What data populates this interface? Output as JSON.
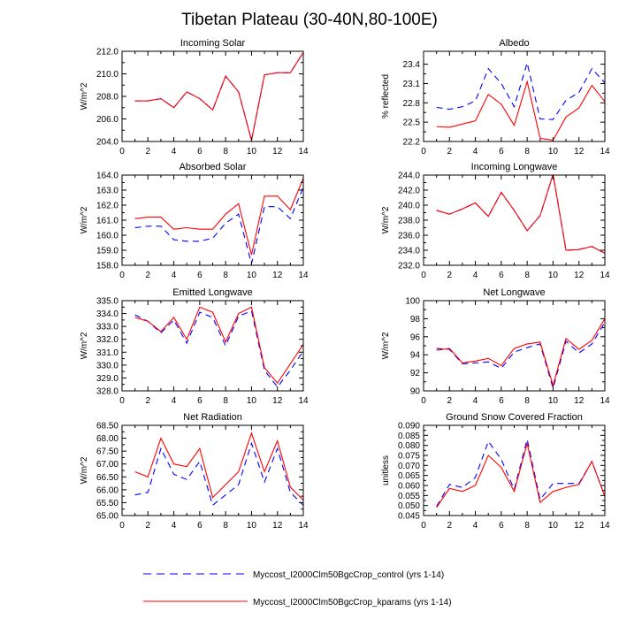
{
  "title": "Tibetan Plateau (30-40N,80-100E)",
  "colors": {
    "control": "#0000ff",
    "kparams": "#ff0000",
    "axis": "#000000"
  },
  "legend": [
    {
      "series": "control",
      "label": "Myccost_I2000Clm50BgcCrop_control (yrs 1-14)",
      "style": "dashed"
    },
    {
      "series": "kparams",
      "label": "Myccost_I2000Clm50BgcCrop_kparams (yrs 1-14)",
      "style": "solid"
    }
  ],
  "chart_data": [
    {
      "type": "line",
      "title": "Incoming Solar",
      "ylabel": "W/m^2",
      "xlim": [
        0,
        14
      ],
      "ylim": [
        204.0,
        212.0
      ],
      "xticks": [
        0,
        2,
        4,
        6,
        8,
        10,
        12,
        14
      ],
      "yticks": [
        "204.0",
        "206.0",
        "208.0",
        "210.0",
        "212.0"
      ],
      "x": [
        1,
        2,
        3,
        4,
        5,
        6,
        7,
        8,
        9,
        10,
        11,
        12,
        13,
        14
      ],
      "series": [
        {
          "name": "control",
          "values": [
            207.6,
            207.6,
            207.8,
            207.0,
            208.4,
            207.8,
            206.8,
            209.8,
            208.4,
            204.1,
            209.9,
            210.1,
            210.1,
            211.9
          ]
        },
        {
          "name": "kparams",
          "values": [
            207.6,
            207.6,
            207.8,
            207.0,
            208.4,
            207.8,
            206.8,
            209.8,
            208.4,
            204.1,
            209.9,
            210.1,
            210.1,
            211.9
          ]
        }
      ]
    },
    {
      "type": "line",
      "title": "Albedo",
      "ylabel": "% reflected",
      "xlim": [
        0,
        14
      ],
      "ylim": [
        22.2,
        23.6
      ],
      "xticks": [
        0,
        2,
        4,
        6,
        8,
        10,
        12,
        14
      ],
      "yticks": [
        "22.2",
        "22.5",
        "22.8",
        "23.1",
        "23.4"
      ],
      "x": [
        1,
        2,
        3,
        4,
        5,
        6,
        7,
        8,
        9,
        10,
        11,
        12,
        13,
        14
      ],
      "series": [
        {
          "name": "control",
          "values": [
            22.73,
            22.7,
            22.74,
            22.83,
            23.33,
            23.1,
            22.74,
            23.42,
            22.55,
            22.54,
            22.84,
            22.96,
            23.33,
            23.11
          ]
        },
        {
          "name": "kparams",
          "values": [
            22.43,
            22.42,
            22.47,
            22.52,
            22.93,
            22.78,
            22.45,
            23.13,
            22.25,
            22.22,
            22.58,
            22.72,
            23.07,
            22.82
          ]
        }
      ]
    },
    {
      "type": "line",
      "title": "Absorbed Solar",
      "ylabel": "W/m^2",
      "xlim": [
        0,
        14
      ],
      "ylim": [
        158.0,
        164.0
      ],
      "xticks": [
        0,
        2,
        4,
        6,
        8,
        10,
        12,
        14
      ],
      "yticks": [
        "158.0",
        "159.0",
        "160.0",
        "161.0",
        "162.0",
        "163.0",
        "164.0"
      ],
      "x": [
        1,
        2,
        3,
        4,
        5,
        6,
        7,
        8,
        9,
        10,
        11,
        12,
        13,
        14
      ],
      "series": [
        {
          "name": "control",
          "values": [
            160.5,
            160.6,
            160.6,
            159.7,
            159.6,
            159.6,
            159.8,
            160.8,
            161.4,
            158.1,
            161.9,
            161.9,
            161.1,
            163.2
          ]
        },
        {
          "name": "kparams",
          "values": [
            161.1,
            161.2,
            161.2,
            160.4,
            160.5,
            160.4,
            160.4,
            161.4,
            162.1,
            158.7,
            162.6,
            162.6,
            161.7,
            163.8
          ]
        }
      ]
    },
    {
      "type": "line",
      "title": "Incoming Longwave",
      "ylabel": "W/m^2",
      "xlim": [
        0,
        14
      ],
      "ylim": [
        232.0,
        244.0
      ],
      "xticks": [
        0,
        2,
        4,
        6,
        8,
        10,
        12,
        14
      ],
      "yticks": [
        "232.0",
        "234.0",
        "236.0",
        "238.0",
        "240.0",
        "242.0",
        "244.0"
      ],
      "x": [
        1,
        2,
        3,
        4,
        5,
        6,
        7,
        8,
        9,
        10,
        11,
        12,
        13,
        14
      ],
      "series": [
        {
          "name": "control",
          "values": [
            239.3,
            238.8,
            239.5,
            240.3,
            238.5,
            241.7,
            239.3,
            236.6,
            238.6,
            244.1,
            234.0,
            234.1,
            234.5,
            233.6
          ]
        },
        {
          "name": "kparams",
          "values": [
            239.3,
            238.8,
            239.5,
            240.3,
            238.5,
            241.7,
            239.3,
            236.6,
            238.6,
            244.1,
            234.0,
            234.1,
            234.5,
            233.6
          ]
        }
      ]
    },
    {
      "type": "line",
      "title": "Emitted Longwave",
      "ylabel": "W/m^2",
      "xlim": [
        0,
        14
      ],
      "ylim": [
        328.0,
        335.0
      ],
      "xticks": [
        0,
        2,
        4,
        6,
        8,
        10,
        12,
        14
      ],
      "yticks": [
        "328.0",
        "329.0",
        "330.0",
        "331.0",
        "332.0",
        "333.0",
        "334.0",
        "335.0"
      ],
      "x": [
        1,
        2,
        3,
        4,
        5,
        6,
        7,
        8,
        9,
        10,
        11,
        12,
        13,
        14
      ],
      "series": [
        {
          "name": "control",
          "values": [
            333.9,
            333.4,
            332.5,
            333.5,
            331.7,
            334.1,
            333.7,
            331.5,
            333.8,
            334.2,
            329.6,
            328.3,
            329.6,
            331.1
          ]
        },
        {
          "name": "kparams",
          "values": [
            333.7,
            333.4,
            332.6,
            333.7,
            332.0,
            334.5,
            334.1,
            331.8,
            334.0,
            334.5,
            329.8,
            328.6,
            330.1,
            331.6
          ]
        }
      ]
    },
    {
      "type": "line",
      "title": "Net Longwave",
      "ylabel": "W/m^2",
      "xlim": [
        0,
        14
      ],
      "ylim": [
        90,
        100
      ],
      "xticks": [
        0,
        2,
        4,
        6,
        8,
        10,
        12,
        14
      ],
      "yticks": [
        "90",
        "92",
        "94",
        "96",
        "98",
        "100"
      ],
      "x": [
        1,
        2,
        3,
        4,
        5,
        6,
        7,
        8,
        9,
        10,
        11,
        12,
        13,
        14
      ],
      "series": [
        {
          "name": "control",
          "values": [
            94.7,
            94.6,
            93.0,
            93.1,
            93.2,
            92.5,
            94.3,
            94.8,
            95.2,
            90.3,
            95.5,
            94.2,
            95.2,
            97.6
          ]
        },
        {
          "name": "kparams",
          "values": [
            94.5,
            94.7,
            93.1,
            93.3,
            93.6,
            92.8,
            94.7,
            95.2,
            95.4,
            90.6,
            95.8,
            94.6,
            95.6,
            98.0
          ]
        }
      ]
    },
    {
      "type": "line",
      "title": "Net Radiation",
      "ylabel": "W/m^2",
      "xlim": [
        0,
        14
      ],
      "ylim": [
        65.0,
        68.5
      ],
      "xticks": [
        0,
        2,
        4,
        6,
        8,
        10,
        12,
        14
      ],
      "yticks": [
        "65.00",
        "65.50",
        "66.00",
        "66.50",
        "67.00",
        "67.50",
        "68.00",
        "68.50"
      ],
      "x": [
        1,
        2,
        3,
        4,
        5,
        6,
        7,
        8,
        9,
        10,
        11,
        12,
        13,
        14
      ],
      "series": [
        {
          "name": "control",
          "values": [
            65.8,
            65.9,
            67.6,
            66.6,
            66.4,
            67.1,
            65.4,
            65.8,
            66.2,
            67.8,
            66.3,
            67.6,
            65.9,
            65.4
          ]
        },
        {
          "name": "kparams",
          "values": [
            66.7,
            66.5,
            68.0,
            67.0,
            66.9,
            67.6,
            65.7,
            66.2,
            66.7,
            68.2,
            66.7,
            67.9,
            66.1,
            65.6
          ]
        }
      ]
    },
    {
      "type": "line",
      "title": "Ground Snow Covered Fraction",
      "ylabel": "unitless",
      "xlim": [
        0,
        14
      ],
      "ylim": [
        0.045,
        0.09
      ],
      "xticks": [
        0,
        2,
        4,
        6,
        8,
        10,
        12,
        14
      ],
      "yticks": [
        "0.045",
        "0.050",
        "0.055",
        "0.060",
        "0.065",
        "0.070",
        "0.075",
        "0.080",
        "0.085",
        "0.090"
      ],
      "x": [
        1,
        2,
        3,
        4,
        5,
        6,
        7,
        8,
        9,
        10,
        11,
        12,
        13,
        14
      ],
      "series": [
        {
          "name": "control",
          "values": [
            0.0495,
            0.0605,
            0.059,
            0.064,
            0.082,
            0.073,
            0.058,
            0.083,
            0.053,
            0.061,
            0.061,
            0.061,
            0.072,
            0.0545
          ]
        },
        {
          "name": "kparams",
          "values": [
            0.049,
            0.0585,
            0.057,
            0.06,
            0.075,
            0.069,
            0.057,
            0.081,
            0.0515,
            0.057,
            0.059,
            0.0605,
            0.072,
            0.0545
          ]
        }
      ]
    }
  ]
}
